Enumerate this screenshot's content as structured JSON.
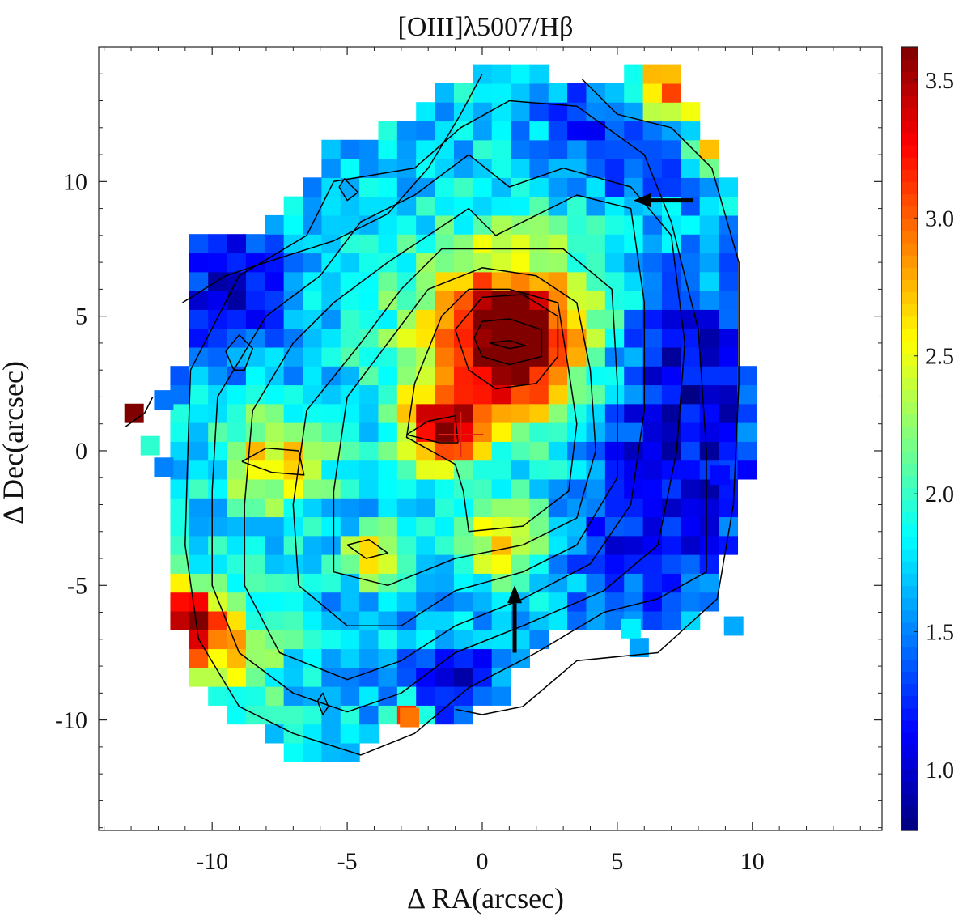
{
  "chart_data": {
    "type": "heatmap",
    "title": "[OIII]λ5007/Hβ",
    "xlabel": "Δ RA(arcsec)",
    "ylabel": "Δ Dec(arcsec)",
    "xlim": [
      -14.2,
      14.8
    ],
    "ylim": [
      -14.1,
      15.0
    ],
    "x_ticks": [
      -10,
      -5,
      0,
      5,
      10
    ],
    "x_tick_labels": [
      "-10",
      "-5",
      "0",
      "5",
      "10"
    ],
    "y_ticks": [
      -10,
      -5,
      0,
      5,
      10
    ],
    "y_tick_labels": [
      "-10",
      "-5",
      "0",
      "5",
      "10"
    ],
    "pixel_size_arcsec": 0.7,
    "colorbar": {
      "range": [
        0.78,
        3.62
      ],
      "ticks": [
        1.0,
        1.5,
        2.0,
        2.5,
        3.0,
        3.5
      ],
      "tick_labels": [
        "1.0",
        "1.5",
        "2.0",
        "2.5",
        "3.0",
        "3.5"
      ],
      "colormap": "jet"
    },
    "background_value": 1.7,
    "blobs": [
      {
        "x": 1.0,
        "y": 4.0,
        "amp": 1.85,
        "r": 1.9
      },
      {
        "x": 0.8,
        "y": 4.6,
        "amp": 0.5,
        "r": 3.4
      },
      {
        "x": -1.6,
        "y": 0.8,
        "amp": 1.55,
        "r": 1.0
      },
      {
        "x": -7.6,
        "y": -0.4,
        "amp": 1.0,
        "r": 1.3
      },
      {
        "x": -4.0,
        "y": -4.0,
        "amp": 1.25,
        "r": 0.7
      },
      {
        "x": 0.8,
        "y": -3.4,
        "amp": 0.8,
        "r": 1.2
      },
      {
        "x": -11.0,
        "y": -6.2,
        "amp": 1.5,
        "r": 1.0
      },
      {
        "x": -9.5,
        "y": -7.5,
        "amp": 0.8,
        "r": 1.5
      },
      {
        "x": 7.0,
        "y": 13.5,
        "amp": 1.6,
        "r": 1.0
      },
      {
        "x": 7.5,
        "y": 3.0,
        "amp": -0.7,
        "r": 2.5
      },
      {
        "x": 6.5,
        "y": -2.5,
        "amp": -0.6,
        "r": 2.5
      },
      {
        "x": -9.5,
        "y": 6.0,
        "amp": -0.65,
        "r": 1.8
      },
      {
        "x": -0.8,
        "y": -8.8,
        "amp": -0.6,
        "r": 1.2
      },
      {
        "x": 5.0,
        "y": 12.0,
        "amp": -0.5,
        "r": 2.0
      },
      {
        "x": -12.9,
        "y": 1.4,
        "amp": 2.0,
        "r": 0.4
      },
      {
        "x": -2.7,
        "y": -9.9,
        "amp": 1.5,
        "r": 0.4
      },
      {
        "x": 8.5,
        "y": 11.3,
        "amp": 1.0,
        "r": 0.5
      }
    ],
    "contours": [
      {
        "name": "level-1",
        "points": [
          [
            -11.1,
            5.5
          ],
          [
            -9.5,
            6.5
          ],
          [
            -8.0,
            7.0
          ],
          [
            -5.5,
            7.8
          ],
          [
            -3.5,
            8.8
          ],
          [
            -2.0,
            10.5
          ],
          [
            -0.8,
            12.5
          ],
          [
            0.0,
            14.0
          ]
        ]
      },
      {
        "name": "level-1b",
        "points": [
          [
            3.7,
            13.8
          ],
          [
            5.0,
            12.5
          ],
          [
            7.0,
            12.0
          ],
          [
            8.5,
            10.5
          ],
          [
            9.5,
            7.0
          ],
          [
            9.5,
            2.5
          ],
          [
            9.3,
            -2.0
          ],
          [
            8.7,
            -5.5
          ],
          [
            6.5,
            -7.5
          ],
          [
            3.5,
            -7.8
          ],
          [
            1.5,
            -9.5
          ],
          [
            0.0,
            -9.8
          ],
          [
            -1.0,
            -9.6
          ]
        ]
      },
      {
        "name": "level-2",
        "points": [
          [
            -10.8,
            3.0
          ],
          [
            -10.9,
            0.0
          ],
          [
            -11.0,
            -3.5
          ],
          [
            -10.5,
            -7.0
          ],
          [
            -9.0,
            -9.5
          ],
          [
            -7.0,
            -10.5
          ],
          [
            -4.5,
            -11.3
          ],
          [
            -2.5,
            -10.5
          ],
          [
            -0.5,
            -8.8
          ],
          [
            2.0,
            -7.5
          ],
          [
            4.5,
            -6.0
          ],
          [
            6.5,
            -5.5
          ],
          [
            8.3,
            -4.5
          ],
          [
            8.3,
            0.0
          ],
          [
            8.0,
            4.5
          ],
          [
            7.0,
            8.5
          ],
          [
            6.0,
            11.0
          ],
          [
            3.5,
            12.8
          ],
          [
            1.0,
            13.0
          ],
          [
            -0.8,
            12.0
          ],
          [
            -2.5,
            10.5
          ],
          [
            -5.5,
            10.0
          ],
          [
            -6.5,
            8.0
          ],
          [
            -9.0,
            6.5
          ],
          [
            -10.8,
            3.0
          ]
        ]
      },
      {
        "name": "level-3",
        "points": [
          [
            -9.8,
            2.0
          ],
          [
            -10.0,
            -1.5
          ],
          [
            -10.0,
            -5.0
          ],
          [
            -9.0,
            -7.5
          ],
          [
            -7.0,
            -9.0
          ],
          [
            -5.0,
            -9.7
          ],
          [
            -3.0,
            -9.0
          ],
          [
            -1.0,
            -7.5
          ],
          [
            1.5,
            -6.5
          ],
          [
            4.5,
            -5.2
          ],
          [
            6.5,
            -3.5
          ],
          [
            7.2,
            0.0
          ],
          [
            7.5,
            4.0
          ],
          [
            7.0,
            8.0
          ],
          [
            5.5,
            9.8
          ],
          [
            3.0,
            10.5
          ],
          [
            1.0,
            9.8
          ],
          [
            -0.5,
            11.0
          ],
          [
            -2.5,
            9.5
          ],
          [
            -4.5,
            8.5
          ],
          [
            -6.0,
            6.5
          ],
          [
            -8.0,
            5.0
          ],
          [
            -9.8,
            2.0
          ]
        ]
      },
      {
        "name": "level-4",
        "points": [
          [
            -8.5,
            1.5
          ],
          [
            -8.8,
            -2.0
          ],
          [
            -8.8,
            -5.0
          ],
          [
            -7.5,
            -7.5
          ],
          [
            -5.0,
            -8.5
          ],
          [
            -3.0,
            -7.8
          ],
          [
            -1.0,
            -6.5
          ],
          [
            1.5,
            -5.5
          ],
          [
            4.0,
            -4.2
          ],
          [
            5.5,
            -2.0
          ],
          [
            6.0,
            1.5
          ],
          [
            6.0,
            5.5
          ],
          [
            5.5,
            9.0
          ],
          [
            3.5,
            9.5
          ],
          [
            1.5,
            8.5
          ],
          [
            0.5,
            8.0
          ],
          [
            -0.5,
            9.0
          ],
          [
            -2.0,
            8.0
          ],
          [
            -3.5,
            7.0
          ],
          [
            -5.5,
            5.5
          ],
          [
            -7.0,
            4.0
          ],
          [
            -8.5,
            1.5
          ]
        ]
      },
      {
        "name": "level-5",
        "points": [
          [
            -6.5,
            1.5
          ],
          [
            -7.0,
            -2.0
          ],
          [
            -6.8,
            -5.0
          ],
          [
            -5.0,
            -6.5
          ],
          [
            -3.0,
            -6.5
          ],
          [
            -1.0,
            -5.2
          ],
          [
            1.5,
            -4.5
          ],
          [
            3.5,
            -3.5
          ],
          [
            5.0,
            -1.0
          ],
          [
            5.0,
            2.5
          ],
          [
            4.8,
            6.0
          ],
          [
            3.0,
            7.5
          ],
          [
            1.0,
            7.5
          ],
          [
            -1.5,
            7.5
          ],
          [
            -3.0,
            6.0
          ],
          [
            -4.5,
            4.0
          ],
          [
            -6.5,
            1.5
          ]
        ]
      },
      {
        "name": "level-6",
        "points": [
          [
            -3.5,
            4.0
          ],
          [
            -5.0,
            2.0
          ],
          [
            -5.5,
            -1.5
          ],
          [
            -5.5,
            -4.5
          ],
          [
            -3.5,
            -5.0
          ],
          [
            -1.0,
            -4.0
          ],
          [
            1.5,
            -3.5
          ],
          [
            3.5,
            -2.5
          ],
          [
            4.2,
            0.0
          ],
          [
            4.0,
            3.0
          ],
          [
            3.5,
            5.5
          ],
          [
            2.0,
            6.5
          ],
          [
            0.0,
            6.8
          ],
          [
            -2.0,
            6.0
          ],
          [
            -3.5,
            4.0
          ]
        ]
      },
      {
        "name": "level-7",
        "points": [
          [
            -1.5,
            5.0
          ],
          [
            -2.5,
            2.5
          ],
          [
            -2.8,
            0.5
          ],
          [
            -1.0,
            -0.5
          ],
          [
            -0.7,
            -1.5
          ],
          [
            -0.5,
            -3.0
          ],
          [
            1.5,
            -2.8
          ],
          [
            3.2,
            -1.5
          ],
          [
            3.5,
            1.0
          ],
          [
            3.2,
            3.0
          ],
          [
            2.8,
            5.5
          ],
          [
            1.0,
            6.0
          ],
          [
            -0.5,
            6.0
          ],
          [
            -1.5,
            5.0
          ]
        ]
      },
      {
        "name": "central-1",
        "points": [
          [
            -1.0,
            4.5
          ],
          [
            -0.5,
            3.0
          ],
          [
            0.5,
            2.3
          ],
          [
            2.0,
            2.5
          ],
          [
            2.8,
            3.5
          ],
          [
            2.8,
            5.0
          ],
          [
            1.5,
            5.8
          ],
          [
            0.0,
            5.7
          ],
          [
            -1.0,
            4.5
          ]
        ]
      },
      {
        "name": "central-2",
        "points": [
          [
            -0.3,
            4.2
          ],
          [
            0.0,
            3.5
          ],
          [
            1.0,
            3.2
          ],
          [
            2.2,
            3.5
          ],
          [
            2.2,
            4.5
          ],
          [
            1.0,
            4.9
          ],
          [
            0.0,
            4.8
          ],
          [
            -0.3,
            4.2
          ]
        ]
      },
      {
        "name": "central-3",
        "points": [
          [
            0.3,
            4.0
          ],
          [
            1.0,
            3.8
          ],
          [
            1.6,
            3.9
          ],
          [
            1.0,
            4.1
          ],
          [
            0.3,
            4.0
          ]
        ]
      },
      {
        "name": "knot-west",
        "points": [
          [
            -8.9,
            -0.4
          ],
          [
            -8.0,
            0.1
          ],
          [
            -6.8,
            0.0
          ],
          [
            -6.6,
            -0.9
          ],
          [
            -7.8,
            -0.8
          ],
          [
            -8.9,
            -0.4
          ]
        ]
      },
      {
        "name": "knot-nw",
        "points": [
          [
            -9.5,
            3.7
          ],
          [
            -9.0,
            4.3
          ],
          [
            -8.5,
            3.8
          ],
          [
            -8.8,
            3.0
          ],
          [
            -9.2,
            3.0
          ],
          [
            -9.5,
            3.7
          ]
        ]
      },
      {
        "name": "knot-n",
        "points": [
          [
            -5.3,
            9.8
          ],
          [
            -5.1,
            10.1
          ],
          [
            -4.6,
            9.6
          ],
          [
            -5.0,
            9.3
          ],
          [
            -5.3,
            9.8
          ]
        ]
      },
      {
        "name": "knot-center",
        "points": [
          [
            -2.8,
            0.6
          ],
          [
            -2.0,
            1.1
          ],
          [
            -1.0,
            1.3
          ],
          [
            -0.9,
            0.3
          ],
          [
            -1.6,
            0.3
          ],
          [
            -2.8,
            0.6
          ]
        ]
      },
      {
        "name": "knot-south",
        "points": [
          [
            -5.0,
            -3.5
          ],
          [
            -4.2,
            -3.3
          ],
          [
            -3.5,
            -3.8
          ],
          [
            -4.3,
            -4.0
          ],
          [
            -5.0,
            -3.5
          ]
        ]
      },
      {
        "name": "knot-sw",
        "points": [
          [
            -6.1,
            -9.3
          ],
          [
            -5.9,
            -9.0
          ],
          [
            -5.7,
            -9.5
          ],
          [
            -5.9,
            -9.8
          ],
          [
            -6.1,
            -9.3
          ]
        ]
      },
      {
        "name": "knot-left-edge",
        "points": [
          [
            -13.2,
            0.9
          ],
          [
            -12.5,
            1.4
          ],
          [
            -12.2,
            2.0
          ]
        ]
      }
    ],
    "annotations": [
      {
        "type": "cross",
        "x": -0.8,
        "y": 0.6,
        "color": "#e02010"
      },
      {
        "type": "arrow",
        "from": [
          7.8,
          9.3
        ],
        "to": [
          5.6,
          9.3
        ],
        "direction": "left"
      },
      {
        "type": "arrow",
        "from": [
          1.2,
          -7.5
        ],
        "to": [
          1.2,
          -5.0
        ],
        "direction": "up"
      }
    ]
  }
}
